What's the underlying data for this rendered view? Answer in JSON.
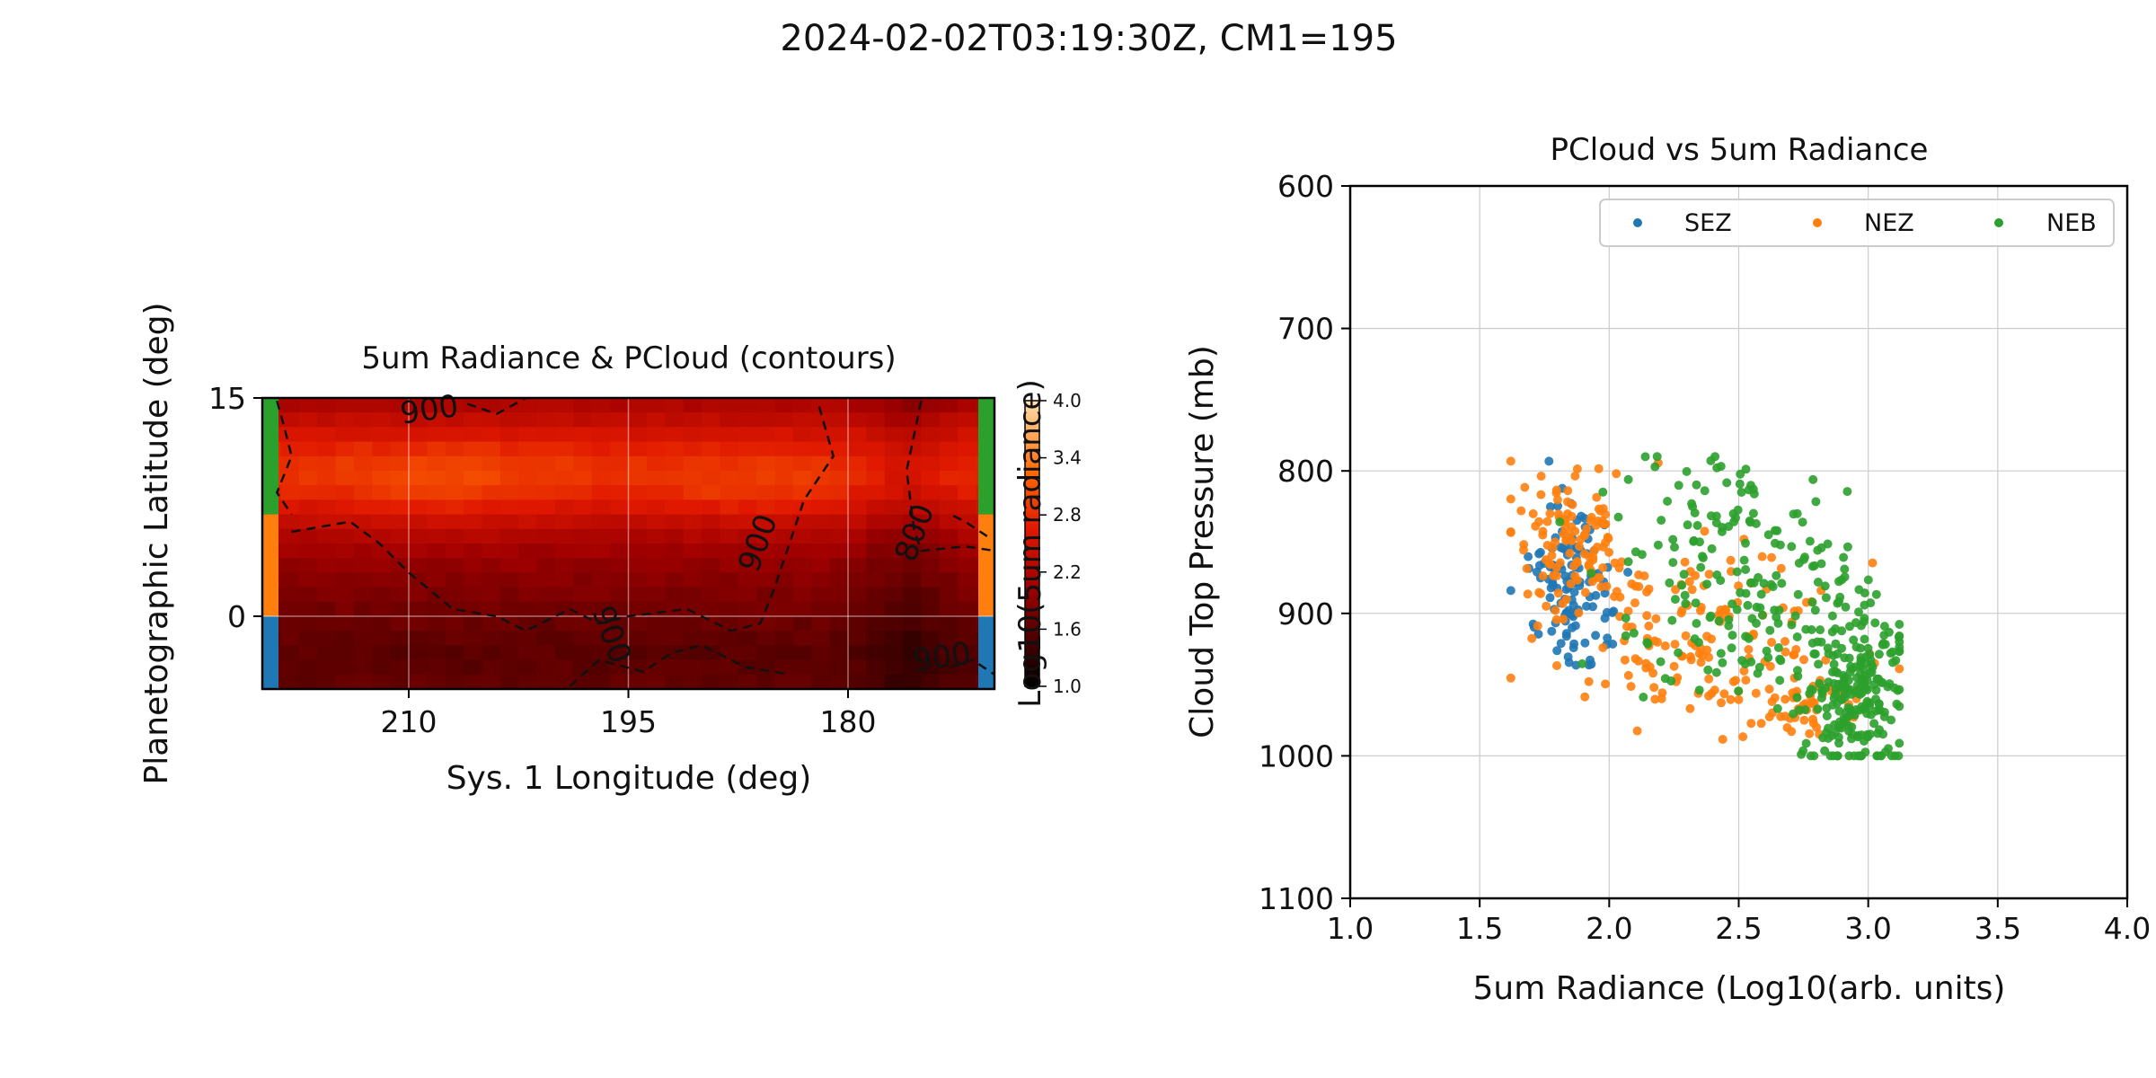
{
  "suptitle": "2024-02-02T03:19:30Z, CM1=195",
  "chart_data": [
    {
      "type": "heatmap",
      "title": "5um Radiance & PCloud (contours)",
      "xlabel": "Sys. 1 Longitude (deg)",
      "ylabel": "Planetographic Latitude (deg)",
      "x_range": [
        220,
        170
      ],
      "xlim": [
        220,
        170
      ],
      "y_range": [
        -5,
        15
      ],
      "ylim": [
        -5,
        15
      ],
      "xticks": [
        "210",
        "195",
        "180"
      ],
      "xtick_values": [
        210,
        195,
        180
      ],
      "yticks": [
        "15",
        "0"
      ],
      "ytick_values": [
        15,
        0
      ],
      "grid": true,
      "colormap": "gist_heat",
      "colorbar": {
        "label": "Log10(5um radiance)",
        "ticks": [
          "4.0",
          "3.4",
          "2.8",
          "2.2",
          "1.6",
          "1.0"
        ],
        "tick_values": [
          4.0,
          3.4,
          2.8,
          2.2,
          1.6,
          1.0
        ],
        "range": [
          1.0,
          4.0
        ]
      },
      "contour_labels": [
        {
          "text": "900",
          "lon": 208.5,
          "lat": 13.5
        },
        {
          "text": "900",
          "lon": 185.5,
          "lat": 4.8
        },
        {
          "text": "800",
          "lon": 174.8,
          "lat": 5.5
        },
        {
          "text": "900",
          "lon": 196.8,
          "lat": -1.5
        },
        {
          "text": "900",
          "lon": 173.5,
          "lat": -3.5
        }
      ],
      "zone_bars": [
        {
          "name": "NEB",
          "lat_range": [
            7,
            15
          ],
          "color": "#2ca02c"
        },
        {
          "name": "NEZ",
          "lat_range": [
            0,
            7
          ],
          "color": "#ff7f0e"
        },
        {
          "name": "SEZ",
          "lat_range": [
            -5,
            0
          ],
          "color": "#1f77b4"
        }
      ]
    },
    {
      "type": "scatter",
      "title": "PCloud vs 5um Radiance",
      "xlabel": "5um Radiance (Log10(arb. units)",
      "ylabel": "Cloud Top Pressure (mb)",
      "xlim": [
        1.0,
        4.0
      ],
      "ylim": [
        1100,
        600
      ],
      "y_inverted": true,
      "xticks": [
        "1.0",
        "1.5",
        "2.0",
        "2.5",
        "3.0",
        "3.5",
        "4.0"
      ],
      "xtick_values": [
        1.0,
        1.5,
        2.0,
        2.5,
        3.0,
        3.5,
        4.0
      ],
      "yticks": [
        "600",
        "700",
        "800",
        "900",
        "1000",
        "1100"
      ],
      "ytick_values": [
        600,
        700,
        800,
        900,
        1000,
        1100
      ],
      "grid": true,
      "legend_position": "top-right",
      "series": [
        {
          "name": "SEZ",
          "color": "#1f77b4",
          "count": 120,
          "clusters": [
            {
              "x": 1.85,
              "y": 878,
              "sx": 0.08,
              "sy": 25,
              "n": 110
            },
            {
              "x": 1.9,
              "y": 920,
              "sx": 0.05,
              "sy": 8,
              "n": 10
            }
          ]
        },
        {
          "name": "NEZ",
          "color": "#ff7f0e",
          "count": 310,
          "clusters": [
            {
              "x": 1.85,
              "y": 845,
              "sx": 0.12,
              "sy": 28,
              "n": 110
            },
            {
              "x": 2.35,
              "y": 915,
              "sx": 0.28,
              "sy": 30,
              "n": 150
            },
            {
              "x": 2.75,
              "y": 960,
              "sx": 0.12,
              "sy": 15,
              "n": 50
            }
          ]
        },
        {
          "name": "NEB",
          "color": "#2ca02c",
          "count": 420,
          "clusters": [
            {
              "x": 2.45,
              "y": 830,
              "sx": 0.22,
              "sy": 25,
              "n": 70
            },
            {
              "x": 2.55,
              "y": 905,
              "sx": 0.25,
              "sy": 28,
              "n": 130
            },
            {
              "x": 2.95,
              "y": 955,
              "sx": 0.1,
              "sy": 30,
              "n": 220
            }
          ]
        }
      ]
    }
  ]
}
